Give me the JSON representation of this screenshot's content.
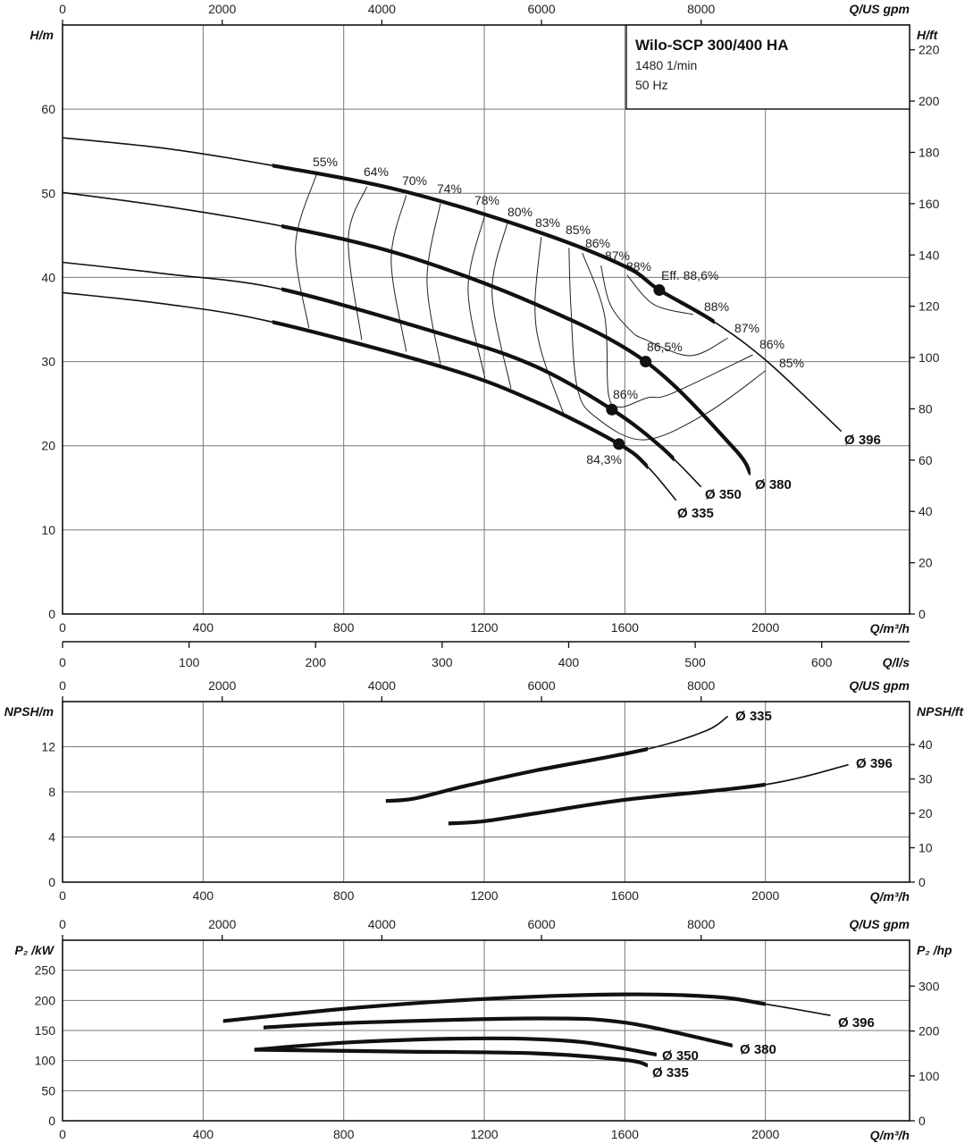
{
  "info_box": {
    "title": "Wilo-SCP 300/400 HA",
    "speed": "1480 1/min",
    "frequency": "50 Hz"
  },
  "axes": {
    "q_m3h": {
      "label": "Q/m³/h",
      "ticks": [
        0,
        400,
        800,
        1200,
        1600,
        2000
      ],
      "range": [
        0,
        2410
      ]
    },
    "q_gpm": {
      "label": "Q/US gpm",
      "ticks": [
        0,
        2000,
        4000,
        6000,
        8000
      ],
      "range": [
        0,
        10611
      ]
    },
    "q_ls": {
      "label": "Q/l/s",
      "ticks": [
        0,
        100,
        200,
        300,
        400,
        500,
        600
      ],
      "range": [
        0,
        669.4
      ]
    }
  },
  "chart_data": [
    {
      "type": "line",
      "panel": "head",
      "ylabel": "H/m",
      "ylabel_right": "H/ft",
      "ylim": [
        0,
        70
      ],
      "yticks": [
        0,
        10,
        20,
        30,
        40,
        50,
        60
      ],
      "ylim_right": [
        0,
        229.66
      ],
      "yticks_right": [
        0,
        20,
        40,
        60,
        80,
        100,
        120,
        140,
        160,
        180,
        200,
        220
      ],
      "grid": true,
      "series": [
        {
          "name": "Ø 396",
          "bold_range": [
            597,
            1855
          ],
          "points": [
            [
              0,
              56.6
            ],
            [
              300,
              55.3
            ],
            [
              597,
              53.3
            ],
            [
              966,
              50.3
            ],
            [
              1347,
              45.5
            ],
            [
              1601,
              41.3
            ],
            [
              1698,
              38.5
            ],
            [
              1855,
              34.7
            ],
            [
              2008,
              29.9
            ],
            [
              2216,
              21.7
            ]
          ]
        },
        {
          "name": "Ø 380",
          "bold_range": [
            623,
            1957
          ],
          "points": [
            [
              0,
              50.1
            ],
            [
              300,
              48.4
            ],
            [
              623,
              46.1
            ],
            [
              966,
              42.7
            ],
            [
              1347,
              36.8
            ],
            [
              1659,
              30.0
            ],
            [
              1906,
              19.9
            ],
            [
              1957,
              16.7
            ]
          ]
        },
        {
          "name": "Ø 350",
          "bold_range": [
            623,
            1740
          ],
          "points": [
            [
              0,
              41.8
            ],
            [
              300,
              40.4
            ],
            [
              623,
              38.6
            ],
            [
              1093,
              33.1
            ],
            [
              1347,
              29.4
            ],
            [
              1563,
              24.3
            ],
            [
              1702,
              19.9
            ],
            [
              1817,
              15.1
            ]
          ]
        },
        {
          "name": "Ø 335",
          "bold_range": [
            597,
            1665
          ],
          "points": [
            [
              0,
              38.2
            ],
            [
              300,
              36.8
            ],
            [
              597,
              34.7
            ],
            [
              1093,
              29.2
            ],
            [
              1347,
              25.2
            ],
            [
              1583,
              20.2
            ],
            [
              1665,
              17.5
            ],
            [
              1746,
              13.5
            ]
          ]
        }
      ],
      "best_efficiency_points": [
        {
          "series": "Ø 396",
          "q": 1698,
          "h": 38.5,
          "label": "Eff. 88,6%"
        },
        {
          "series": "Ø 380",
          "q": 1659,
          "h": 30.0,
          "label": "86,5%"
        },
        {
          "series": "Ø 350",
          "q": 1563,
          "h": 24.3,
          "label": "86%"
        },
        {
          "series": "Ø 335",
          "q": 1583,
          "h": 20.2,
          "label": "84,3%"
        }
      ],
      "efficiency_contours": [
        {
          "label": "55%",
          "points": [
            [
              722,
              52.2
            ],
            [
              663,
              43.9
            ],
            [
              701,
              34.0
            ]
          ]
        },
        {
          "label": "64%",
          "points": [
            [
              866,
              50.8
            ],
            [
              813,
              44.6
            ],
            [
              851,
              32.6
            ]
          ]
        },
        {
          "label": "70%",
          "points": [
            [
              978,
              49.8
            ],
            [
              935,
              42.1
            ],
            [
              978,
              31.2
            ]
          ]
        },
        {
          "label": "74%",
          "points": [
            [
              1075,
              48.8
            ],
            [
              1037,
              39.7
            ],
            [
              1075,
              29.7
            ]
          ]
        },
        {
          "label": "78%",
          "points": [
            [
              1202,
              47.5
            ],
            [
              1154,
              38.6
            ],
            [
              1202,
              28.0
            ]
          ]
        },
        {
          "label": "80%",
          "points": [
            [
              1265,
              46.4
            ],
            [
              1222,
              38.2
            ],
            [
              1276,
              26.8
            ]
          ]
        },
        {
          "label": "83%",
          "points": [
            [
              1362,
              44.8
            ],
            [
              1344,
              36.8
            ],
            [
              1362,
              31.2
            ],
            [
              1425,
              23.9
            ]
          ]
        },
        {
          "label": "85%",
          "label_end": "85%",
          "points": [
            [
              1441,
              43.5
            ],
            [
              1446,
              36.8
            ],
            [
              1464,
              27.0
            ],
            [
              1517,
              23.4
            ],
            [
              1654,
              20.7
            ],
            [
              1830,
              23.8
            ],
            [
              2000,
              28.9
            ]
          ]
        },
        {
          "label": "86%",
          "label_end": "86%",
          "points": [
            [
              1479,
              42.9
            ],
            [
              1542,
              35.5
            ],
            [
              1553,
              26.2
            ],
            [
              1586,
              24.6
            ],
            [
              1664,
              25.7
            ],
            [
              1733,
              26.2
            ],
            [
              1964,
              30.8
            ]
          ]
        },
        {
          "label": "87%",
          "label_end": "87%",
          "points": [
            [
              1532,
              41.4
            ],
            [
              1558,
              36.8
            ],
            [
              1616,
              33.7
            ],
            [
              1659,
              32.6
            ],
            [
              1786,
              30.7
            ],
            [
              1893,
              32.8
            ]
          ]
        },
        {
          "label": "88%",
          "label_end": "88%",
          "points": [
            [
              1606,
              40.3
            ],
            [
              1682,
              36.8
            ],
            [
              1794,
              35.6
            ]
          ]
        }
      ]
    },
    {
      "type": "line",
      "panel": "npsh",
      "ylabel": "NPSH/m",
      "ylabel_right": "NPSH/ft",
      "ylim": [
        0,
        16
      ],
      "yticks": [
        0,
        4,
        8,
        12
      ],
      "ylim_right": [
        0,
        52.5
      ],
      "yticks_right": [
        0,
        10,
        20,
        30,
        40
      ],
      "grid": true,
      "series": [
        {
          "name": "Ø 335",
          "bold_range": [
            920,
            1665
          ],
          "points": [
            [
              920,
              7.2
            ],
            [
              1000,
              7.4
            ],
            [
              1143,
              8.5
            ],
            [
              1347,
              9.9
            ],
            [
              1665,
              11.8
            ],
            [
              1830,
              13.4
            ],
            [
              1893,
              14.7
            ]
          ]
        },
        {
          "name": "Ø 396",
          "bold_range": [
            1098,
            2000
          ],
          "points": [
            [
              1098,
              5.2
            ],
            [
              1200,
              5.4
            ],
            [
              1347,
              6.1
            ],
            [
              1601,
              7.3
            ],
            [
              2000,
              8.65
            ],
            [
              2236,
              10.4
            ]
          ]
        }
      ]
    },
    {
      "type": "line",
      "panel": "power",
      "ylabel": "P₂ /kW",
      "ylabel_right": "P₂ /hp",
      "ylim": [
        0,
        300
      ],
      "yticks": [
        0,
        50,
        100,
        150,
        200,
        250
      ],
      "ylim_right": [
        0,
        402.3
      ],
      "yticks_right": [
        0,
        100,
        200,
        300
      ],
      "grid": true,
      "series": [
        {
          "name": "Ø 396",
          "bold_range": [
            457,
            2000
          ],
          "points": [
            [
              457,
              165.7
            ],
            [
              839,
              188
            ],
            [
              1220,
              203
            ],
            [
              1601,
              210
            ],
            [
              1855,
              206
            ],
            [
              2000,
              194
            ],
            [
              2185,
              175
            ]
          ]
        },
        {
          "name": "Ø 380",
          "bold_range": [
            572,
            1906
          ],
          "points": [
            [
              572,
              155
            ],
            [
              839,
              163
            ],
            [
              1347,
              170
            ],
            [
              1601,
              163
            ],
            [
              1906,
              125
            ]
          ]
        },
        {
          "name": "Ø 350",
          "bold_range": [
            546,
            1690
          ],
          "points": [
            [
              546,
              118
            ],
            [
              839,
              131
            ],
            [
              1220,
              137
            ],
            [
              1474,
              131
            ],
            [
              1690,
              110
            ]
          ]
        },
        {
          "name": "Ø 335",
          "bold_range": [
            546,
            1665
          ],
          "points": [
            [
              546,
              118
            ],
            [
              966,
              115
            ],
            [
              1347,
              112
            ],
            [
              1601,
              101
            ],
            [
              1665,
              92
            ]
          ]
        }
      ]
    }
  ]
}
